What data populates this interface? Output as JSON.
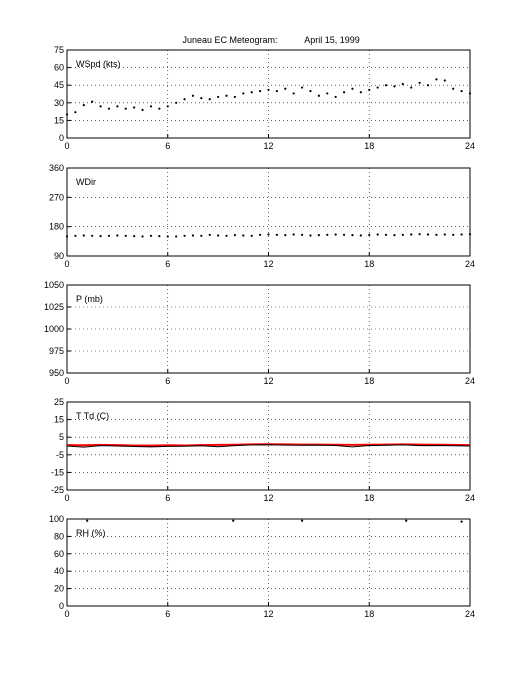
{
  "title": "Juneau EC Meteogram:",
  "date": "April 15, 1999",
  "colors": {
    "ink": "#000000",
    "temperature": "#ff0000",
    "dewpoint": "#000000"
  },
  "chart_data": [
    {
      "type": "scatter",
      "panel_label": "WSpd (kts)",
      "xlim": [
        0,
        24
      ],
      "xticks": [
        0,
        6,
        12,
        18,
        24
      ],
      "ylim": [
        0,
        75
      ],
      "yticks": [
        0,
        15,
        30,
        45,
        60,
        75
      ],
      "grid": true,
      "series": [
        {
          "x": [
            0,
            0.5,
            1,
            1.5,
            2,
            2.5,
            3,
            3.5,
            4,
            4.5,
            5,
            5.5,
            6,
            6.5,
            7,
            7.5,
            8,
            8.5,
            9,
            9.5,
            10,
            10.5,
            11,
            11.5,
            12,
            12.5,
            13,
            13.5,
            14,
            14.5,
            15,
            15.5,
            16,
            16.5,
            17,
            17.5,
            18,
            18.5,
            19,
            19.5,
            20,
            20.5,
            21,
            21.5,
            22,
            22.5,
            23,
            23.5,
            24
          ],
          "y": [
            20,
            22,
            28,
            31,
            27,
            25,
            27,
            25,
            26,
            24,
            27,
            25,
            27,
            30,
            33,
            36,
            34,
            33,
            35,
            36,
            35,
            38,
            39,
            40,
            41,
            40,
            42,
            38,
            43,
            40,
            36,
            38,
            35,
            39,
            42,
            39,
            41,
            43,
            45,
            44,
            46,
            43,
            47,
            45,
            50,
            49,
            42,
            40,
            38
          ]
        }
      ]
    },
    {
      "type": "scatter",
      "panel_label": "WDir",
      "xlim": [
        0,
        24
      ],
      "xticks": [
        0,
        6,
        12,
        18,
        24
      ],
      "ylim": [
        90,
        360
      ],
      "yticks": [
        90,
        180,
        270,
        360
      ],
      "ytick_labels": [
        "90",
        "180",
        "270",
        "360"
      ],
      "grid": true,
      "series": [
        {
          "x": [
            0,
            0.5,
            1,
            1.5,
            2,
            2.5,
            3,
            3.5,
            4,
            4.5,
            5,
            5.5,
            6,
            6.5,
            7,
            7.5,
            8,
            8.5,
            9,
            9.5,
            10,
            10.5,
            11,
            11.5,
            12,
            12.5,
            13,
            13.5,
            14,
            14.5,
            15,
            15.5,
            16,
            16.5,
            17,
            17.5,
            18,
            18.5,
            19,
            19.5,
            20,
            20.5,
            21,
            21.5,
            22,
            22.5,
            23,
            23.5,
            24
          ],
          "y": [
            150,
            152,
            153,
            152,
            151,
            152,
            153,
            152,
            151,
            150,
            152,
            151,
            150,
            150,
            152,
            153,
            152,
            155,
            153,
            152,
            154,
            153,
            152,
            155,
            156,
            155,
            154,
            156,
            155,
            153,
            154,
            155,
            156,
            155,
            154,
            153,
            155,
            156,
            155,
            154,
            155,
            156,
            157,
            156,
            155,
            156,
            155,
            156,
            157
          ]
        }
      ]
    },
    {
      "type": "line",
      "panel_label": "P (mb)",
      "xlim": [
        0,
        24
      ],
      "xticks": [
        0,
        6,
        12,
        18,
        24
      ],
      "ylim": [
        950,
        1050
      ],
      "yticks": [
        950,
        975,
        1000,
        1025,
        1050
      ],
      "grid": true,
      "series": []
    },
    {
      "type": "line",
      "panel_label": "T Td (C)",
      "xlim": [
        0,
        24
      ],
      "xticks": [
        0,
        6,
        12,
        18,
        24
      ],
      "ylim": [
        -25,
        25
      ],
      "yticks": [
        -25,
        -15,
        -5,
        5,
        15,
        25
      ],
      "ytick_labels": [
        "-25",
        "-15",
        "-5",
        "5",
        "15",
        "25"
      ],
      "grid": true,
      "series": [
        {
          "x": [
            0,
            1,
            2,
            3,
            4,
            5,
            6,
            7,
            8,
            9,
            10,
            11,
            12,
            13,
            14,
            15,
            16,
            17,
            18,
            19,
            20,
            21,
            22,
            23,
            24
          ],
          "y": [
            0.5,
            0.4,
            0.6,
            0.5,
            0.3,
            0.2,
            0.4,
            0.3,
            0.5,
            0.6,
            0.7,
            0.9,
            1.0,
            0.9,
            0.8,
            0.8,
            0.7,
            0.6,
            0.7,
            0.8,
            0.9,
            0.8,
            0.7,
            0.6,
            0.5
          ]
        },
        {
          "x": [
            0,
            1,
            2,
            3,
            4,
            5,
            6,
            7,
            8,
            9,
            10,
            11,
            12,
            13,
            14,
            15,
            16,
            17,
            18,
            19,
            20,
            21,
            22,
            23,
            24
          ],
          "y": [
            0.0,
            -0.6,
            0.2,
            0.0,
            -0.3,
            -0.5,
            -0.2,
            -0.1,
            0.1,
            -0.4,
            0.2,
            0.6,
            0.7,
            0.5,
            0.4,
            0.5,
            0.3,
            -0.5,
            0.3,
            0.4,
            0.6,
            0.2,
            0.3,
            0.1,
            0.0
          ]
        }
      ]
    },
    {
      "type": "scatter",
      "panel_label": "RH (%)",
      "xlim": [
        0,
        24
      ],
      "xticks": [
        0,
        6,
        12,
        18,
        24
      ],
      "ylim": [
        0,
        100
      ],
      "yticks": [
        0,
        20,
        40,
        60,
        80,
        100
      ],
      "grid": true,
      "series": [
        {
          "x": [
            1.2,
            9.9,
            14.0,
            20.2,
            23.5
          ],
          "y": [
            98,
            98,
            98,
            98,
            97
          ]
        }
      ]
    }
  ]
}
